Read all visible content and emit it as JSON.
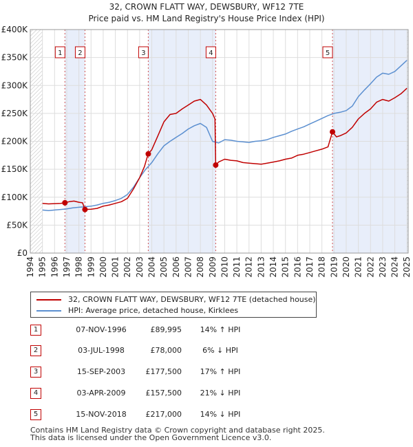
{
  "chart_data": {
    "type": "line",
    "title": "32, CROWN FLATT WAY, DEWSBURY, WF12 7TE",
    "subtitle": "Price paid vs. HM Land Registry's House Price Index (HPI)",
    "xlabel": "",
    "ylabel": "",
    "xlim": [
      1994,
      2025.1
    ],
    "ylim": [
      0,
      400000
    ],
    "y_ticks": [
      0,
      50000,
      100000,
      150000,
      200000,
      250000,
      300000,
      350000,
      400000
    ],
    "y_tick_labels": [
      "£0",
      "£50K",
      "£100K",
      "£150K",
      "£200K",
      "£250K",
      "£300K",
      "£350K",
      "£400K"
    ],
    "x_ticks": [
      1994,
      1995,
      1996,
      1997,
      1998,
      1999,
      2000,
      2001,
      2002,
      2003,
      2004,
      2005,
      2006,
      2007,
      2008,
      2009,
      2010,
      2011,
      2012,
      2013,
      2014,
      2015,
      2016,
      2017,
      2018,
      2019,
      2020,
      2021,
      2022,
      2023,
      2024,
      2025
    ],
    "series": [
      {
        "name": "32, CROWN FLATT WAY, DEWSBURY, WF12 7TE (detached house)",
        "color": "#c00000",
        "x": [
          1995.0,
          1995.5,
          1996.0,
          1996.5,
          1996.85,
          1997.2,
          1997.6,
          1998.0,
          1998.3,
          1998.5,
          1999.0,
          1999.5,
          2000.0,
          2000.5,
          2001.0,
          2001.5,
          2002.0,
          2002.5,
          2003.0,
          2003.4,
          2003.7,
          2004.0,
          2004.5,
          2005.0,
          2005.5,
          2006.0,
          2006.5,
          2007.0,
          2007.5,
          2008.0,
          2008.5,
          2009.0,
          2009.2,
          2009.26,
          2009.5,
          2010.0,
          2010.5,
          2011.0,
          2011.5,
          2012.0,
          2012.5,
          2013.0,
          2013.5,
          2014.0,
          2014.5,
          2015.0,
          2015.5,
          2016.0,
          2016.5,
          2017.0,
          2017.5,
          2018.0,
          2018.5,
          2018.87,
          2019.2,
          2019.5,
          2020.0,
          2020.5,
          2021.0,
          2021.5,
          2022.0,
          2022.5,
          2023.0,
          2023.5,
          2024.0,
          2024.5,
          2025.0
        ],
        "y": [
          89000,
          88000,
          88500,
          89000,
          89995,
          92000,
          93000,
          91000,
          90000,
          78000,
          78500,
          80000,
          84000,
          86000,
          89000,
          92000,
          98000,
          115000,
          135000,
          155000,
          177500,
          185000,
          210000,
          235000,
          248000,
          250000,
          258000,
          265000,
          272000,
          275000,
          265000,
          250000,
          240000,
          157500,
          163000,
          168000,
          166000,
          165000,
          162000,
          161000,
          160000,
          159000,
          161000,
          163000,
          165000,
          168000,
          170000,
          175000,
          177000,
          180000,
          183000,
          186000,
          190000,
          217000,
          208000,
          210000,
          215000,
          225000,
          240000,
          250000,
          258000,
          270000,
          275000,
          272000,
          278000,
          285000,
          295000
        ]
      },
      {
        "name": "HPI: Average price, detached house, Kirklees",
        "color": "#5b8fd0",
        "x": [
          1995.0,
          1995.5,
          1996.0,
          1996.5,
          1997.0,
          1997.5,
          1998.0,
          1998.5,
          1999.0,
          1999.5,
          2000.0,
          2000.5,
          2001.0,
          2001.5,
          2002.0,
          2002.5,
          2003.0,
          2003.5,
          2004.0,
          2004.5,
          2005.0,
          2005.5,
          2006.0,
          2006.5,
          2007.0,
          2007.5,
          2008.0,
          2008.5,
          2009.0,
          2009.5,
          2010.0,
          2010.5,
          2011.0,
          2011.5,
          2012.0,
          2012.5,
          2013.0,
          2013.5,
          2014.0,
          2014.5,
          2015.0,
          2015.5,
          2016.0,
          2016.5,
          2017.0,
          2017.5,
          2018.0,
          2018.5,
          2019.0,
          2019.5,
          2020.0,
          2020.5,
          2021.0,
          2021.5,
          2022.0,
          2022.5,
          2023.0,
          2023.5,
          2024.0,
          2024.5,
          2025.0
        ],
        "y": [
          77000,
          76000,
          77000,
          78000,
          79000,
          81000,
          82000,
          83000,
          84000,
          86000,
          89000,
          91000,
          94000,
          98000,
          105000,
          118000,
          135000,
          150000,
          162000,
          178000,
          192000,
          200000,
          207000,
          214000,
          222000,
          228000,
          232000,
          225000,
          200000,
          197000,
          203000,
          202000,
          200000,
          199000,
          198000,
          200000,
          201000,
          203000,
          207000,
          210000,
          213000,
          218000,
          222000,
          226000,
          231000,
          236000,
          241000,
          246000,
          250000,
          252000,
          255000,
          263000,
          280000,
          292000,
          303000,
          315000,
          322000,
          320000,
          325000,
          335000,
          345000
        ]
      }
    ],
    "sales": [
      {
        "num": "1",
        "x": 1996.85,
        "y": 89995
      },
      {
        "num": "2",
        "x": 1998.5,
        "y": 78000
      },
      {
        "num": "3",
        "x": 2003.71,
        "y": 177500
      },
      {
        "num": "4",
        "x": 2009.26,
        "y": 157500
      },
      {
        "num": "5",
        "x": 2018.87,
        "y": 217000
      }
    ],
    "shaded_periods": [
      [
        1996.85,
        1998.5
      ],
      [
        2003.71,
        2009.26
      ],
      [
        2018.87,
        2025.1
      ]
    ],
    "hatch_periods": [
      [
        1994,
        1995.0
      ],
      [
        2025.0,
        2025.1
      ]
    ]
  },
  "legend": {
    "property_label": "32, CROWN FLATT WAY, DEWSBURY, WF12 7TE (detached house)",
    "hpi_label": "HPI: Average price, detached house, Kirklees",
    "property_color": "#c00000",
    "hpi_color": "#5b8fd0"
  },
  "sales_table": [
    {
      "num": "1",
      "date": "07-NOV-1996",
      "price": "£89,995",
      "hpi": "14% ↑ HPI"
    },
    {
      "num": "2",
      "date": "03-JUL-1998",
      "price": "£78,000",
      "hpi": "6% ↓ HPI"
    },
    {
      "num": "3",
      "date": "15-SEP-2003",
      "price": "£177,500",
      "hpi": "17% ↑ HPI"
    },
    {
      "num": "4",
      "date": "03-APR-2009",
      "price": "£157,500",
      "hpi": "21% ↓ HPI"
    },
    {
      "num": "5",
      "date": "15-NOV-2018",
      "price": "£217,000",
      "hpi": "14% ↓ HPI"
    }
  ],
  "footer": {
    "line1": "Contains HM Land Registry data © Crown copyright and database right 2025.",
    "line2": "This data is licensed under the Open Government Licence v3.0."
  }
}
